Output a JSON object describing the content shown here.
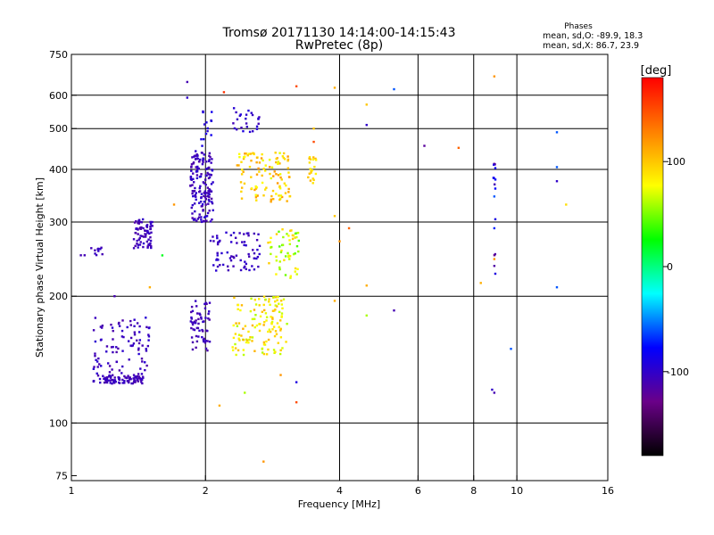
{
  "chart_data": {
    "type": "scatter",
    "title": "Tromsø 20171130 14:14:00-14:15:43",
    "subtitle": "RwPretec (8p)",
    "phases_title": "Phases",
    "phases_o": "mean, sd,O: -89.9, 18.3",
    "phases_x": "mean, sd,X: 86.7, 23.9",
    "xlabel": "Frequency [MHz]",
    "ylabel": "Stationary phase Virtual Height [km]",
    "xscale": "log",
    "yscale": "log",
    "xlim": [
      1,
      16
    ],
    "ylim": [
      73,
      750
    ],
    "x_ticks": [
      {
        "v": 1,
        "label": "1"
      },
      {
        "v": 2,
        "label": "2"
      },
      {
        "v": 4,
        "label": "4"
      },
      {
        "v": 6,
        "label": "6"
      },
      {
        "v": 8,
        "label": "8"
      },
      {
        "v": 10,
        "label": "10"
      },
      {
        "v": 16,
        "label": "16"
      }
    ],
    "x_grid": [
      2,
      4,
      6,
      8,
      10
    ],
    "y_ticks": [
      {
        "v": 75,
        "label": "75"
      },
      {
        "v": 100,
        "label": "100"
      },
      {
        "v": 200,
        "label": "200"
      },
      {
        "v": 300,
        "label": "300"
      },
      {
        "v": 400,
        "label": "400"
      },
      {
        "v": 500,
        "label": "500"
      },
      {
        "v": 600,
        "label": "600"
      },
      {
        "v": 750,
        "label": "750"
      }
    ],
    "y_grid": [
      100,
      200,
      300,
      400,
      500,
      600
    ],
    "colorbar": {
      "label": "[deg]",
      "range": [
        -180,
        180
      ],
      "ticks": [
        {
          "v": 100,
          "label": "100"
        },
        {
          "v": 0,
          "label": "0"
        },
        {
          "v": -100,
          "label": "-100"
        }
      ],
      "colors": [
        "#000000",
        "#6a0088",
        "#0000ff",
        "#00ffff",
        "#00ff00",
        "#ffff00",
        "#ff8000",
        "#ff0000"
      ]
    },
    "clusters": [
      {
        "x": [
          1.12,
          1.45
        ],
        "y": [
          124,
          130
        ],
        "phase": [
          -115,
          -100
        ],
        "n": 90
      },
      {
        "x": [
          1.12,
          1.5
        ],
        "y": [
          130,
          180
        ],
        "phase": [
          -115,
          -95
        ],
        "n": 90
      },
      {
        "x": [
          1.38,
          1.52
        ],
        "y": [
          260,
          305
        ],
        "phase": [
          -115,
          -100
        ],
        "n": 70
      },
      {
        "x": [
          1.05,
          1.22
        ],
        "y": [
          250,
          262
        ],
        "phase": [
          -110,
          -100
        ],
        "n": 12
      },
      {
        "x": [
          1.85,
          2.05
        ],
        "y": [
          148,
          195
        ],
        "phase": [
          -115,
          -100
        ],
        "n": 60
      },
      {
        "x": [
          1.85,
          2.08
        ],
        "y": [
          300,
          440
        ],
        "phase": [
          -115,
          -95
        ],
        "n": 160
      },
      {
        "x": [
          1.9,
          2.1
        ],
        "y": [
          440,
          560
        ],
        "phase": [
          -100,
          -85
        ],
        "n": 15
      },
      {
        "x": [
          2.05,
          2.65
        ],
        "y": [
          230,
          285
        ],
        "phase": [
          -110,
          -95
        ],
        "n": 70
      },
      {
        "x": [
          2.3,
          2.65
        ],
        "y": [
          490,
          560
        ],
        "phase": [
          -110,
          -90
        ],
        "n": 25
      },
      {
        "x": [
          2.3,
          3.05
        ],
        "y": [
          145,
          200
        ],
        "phase": [
          60,
          110
        ],
        "n": 130
      },
      {
        "x": [
          2.35,
          3.1
        ],
        "y": [
          335,
          440
        ],
        "phase": [
          70,
          120
        ],
        "n": 110
      },
      {
        "x": [
          2.75,
          3.25
        ],
        "y": [
          220,
          290
        ],
        "phase": [
          40,
          100
        ],
        "n": 55
      },
      {
        "x": [
          3.4,
          3.55
        ],
        "y": [
          370,
          430
        ],
        "phase": [
          80,
          110
        ],
        "n": 20
      },
      {
        "x": [
          8.85,
          8.95
        ],
        "y": [
          210,
          420
        ],
        "phase": [
          -130,
          -60
        ],
        "n": 14
      }
    ],
    "points": [
      {
        "x": 1.82,
        "y": 645,
        "p": -110
      },
      {
        "x": 1.82,
        "y": 592,
        "p": -100
      },
      {
        "x": 2.2,
        "y": 610,
        "p": 160
      },
      {
        "x": 3.2,
        "y": 630,
        "p": 150
      },
      {
        "x": 3.9,
        "y": 625,
        "p": 110
      },
      {
        "x": 4.6,
        "y": 570,
        "p": 100
      },
      {
        "x": 4.6,
        "y": 510,
        "p": -100
      },
      {
        "x": 5.3,
        "y": 620,
        "p": -60
      },
      {
        "x": 6.2,
        "y": 455,
        "p": -120
      },
      {
        "x": 7.4,
        "y": 450,
        "p": 140
      },
      {
        "x": 8.9,
        "y": 665,
        "p": 120
      },
      {
        "x": 12.3,
        "y": 490,
        "p": -60
      },
      {
        "x": 12.3,
        "y": 405,
        "p": -60
      },
      {
        "x": 12.3,
        "y": 375,
        "p": -100
      },
      {
        "x": 12.9,
        "y": 330,
        "p": 90
      },
      {
        "x": 12.3,
        "y": 210,
        "p": -60
      },
      {
        "x": 4.2,
        "y": 290,
        "p": 140
      },
      {
        "x": 4.0,
        "y": 270,
        "p": 120
      },
      {
        "x": 4.6,
        "y": 212,
        "p": 110
      },
      {
        "x": 4.6,
        "y": 180,
        "p": 60
      },
      {
        "x": 5.3,
        "y": 185,
        "p": -110
      },
      {
        "x": 3.9,
        "y": 195,
        "p": 110
      },
      {
        "x": 3.9,
        "y": 310,
        "p": 100
      },
      {
        "x": 9.7,
        "y": 150,
        "p": -60
      },
      {
        "x": 8.9,
        "y": 118,
        "p": -110
      },
      {
        "x": 8.8,
        "y": 120,
        "p": -100
      },
      {
        "x": 2.7,
        "y": 81,
        "p": 120
      },
      {
        "x": 2.45,
        "y": 118,
        "p": 60
      },
      {
        "x": 2.15,
        "y": 110,
        "p": 110
      },
      {
        "x": 3.2,
        "y": 112,
        "p": 150
      },
      {
        "x": 3.2,
        "y": 125,
        "p": -90
      },
      {
        "x": 2.95,
        "y": 130,
        "p": 120
      },
      {
        "x": 1.6,
        "y": 250,
        "p": 20
      },
      {
        "x": 1.7,
        "y": 330,
        "p": 120
      },
      {
        "x": 1.5,
        "y": 210,
        "p": 110
      },
      {
        "x": 1.25,
        "y": 200,
        "p": -110
      },
      {
        "x": 8.9,
        "y": 245,
        "p": 120
      },
      {
        "x": 8.9,
        "y": 290,
        "p": -70
      },
      {
        "x": 8.9,
        "y": 345,
        "p": -60
      },
      {
        "x": 8.3,
        "y": 215,
        "p": 110
      },
      {
        "x": 3.5,
        "y": 500,
        "p": 100
      },
      {
        "x": 3.5,
        "y": 465,
        "p": 150
      }
    ]
  }
}
